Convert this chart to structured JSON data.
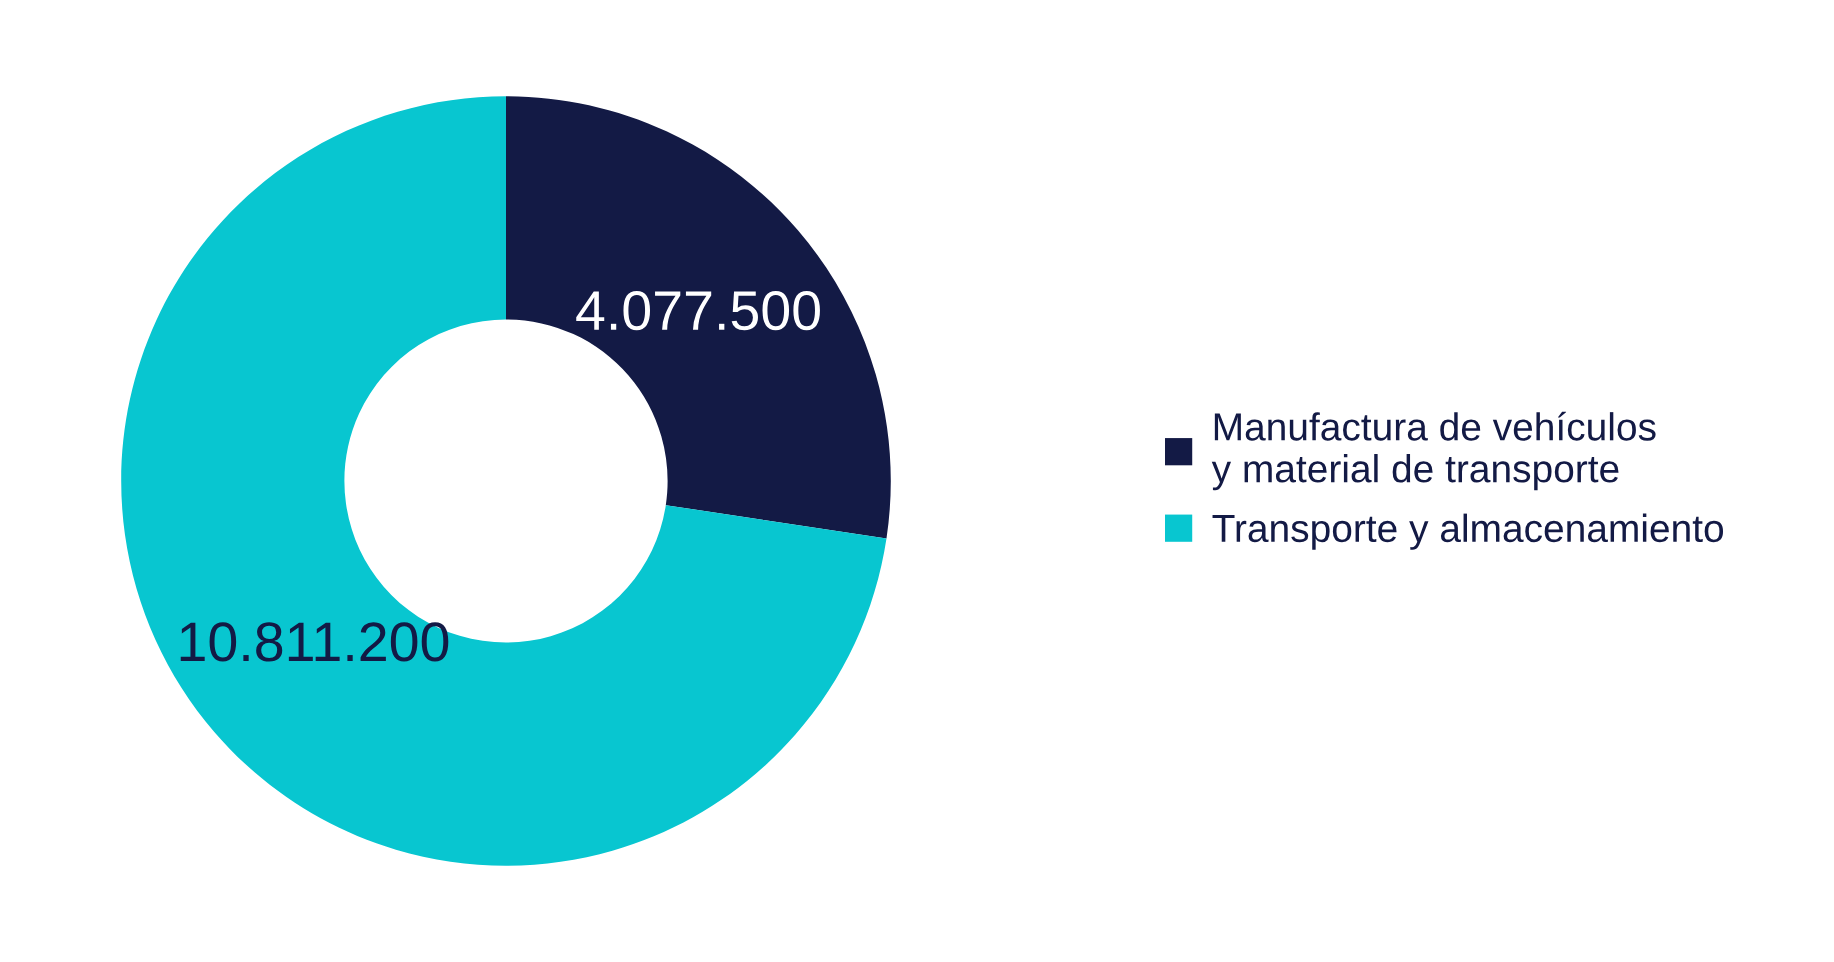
{
  "chart_data": {
    "type": "donut",
    "categories": [
      "Manufactura de vehículos\ny material de transporte",
      "Transporte y almacenamiento"
    ],
    "values": [
      4077500,
      10811200
    ],
    "colors": [
      "#131a45",
      "#08c6d0"
    ],
    "value_labels": [
      "4.077.500",
      "10.811.200"
    ],
    "legend": "right"
  }
}
